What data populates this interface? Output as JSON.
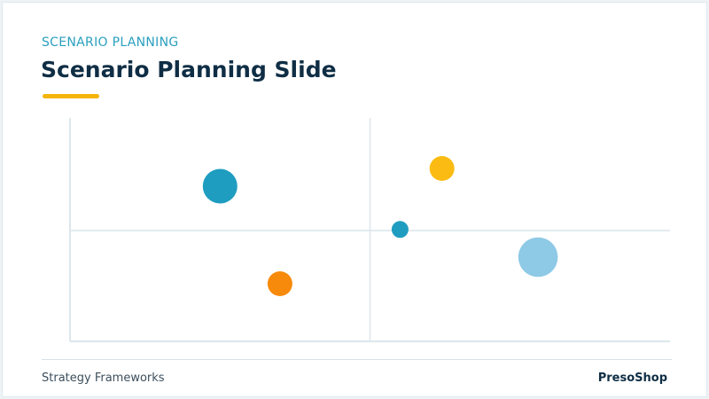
{
  "header": {
    "eyebrow": "SCENARIO PLANNING",
    "title": "Scenario Planning Slide"
  },
  "footer": {
    "left": "Strategy Frameworks",
    "right": "PresoShop"
  },
  "colors": {
    "accent": "#f5b50a",
    "teal": "#2a9fbe",
    "navy": "#0f2e45"
  },
  "chart_data": {
    "type": "scatter",
    "title": "",
    "xlabel": "",
    "ylabel": "",
    "xlim": [
      -1,
      1
    ],
    "ylim": [
      -1,
      1
    ],
    "grid": false,
    "quadrant_dividers": true,
    "points": [
      {
        "x": -0.5,
        "y": 0.4,
        "size": 3,
        "color": "#1f9dc0"
      },
      {
        "x": 0.24,
        "y": 0.56,
        "size": 2,
        "color": "#fbbb12"
      },
      {
        "x": 0.1,
        "y": 0.01,
        "size": 1,
        "color": "#1f9dc0"
      },
      {
        "x": 0.56,
        "y": -0.24,
        "size": 3.5,
        "color": "#8ec9e6"
      },
      {
        "x": -0.3,
        "y": -0.48,
        "size": 2,
        "color": "#f78a0a"
      }
    ]
  }
}
